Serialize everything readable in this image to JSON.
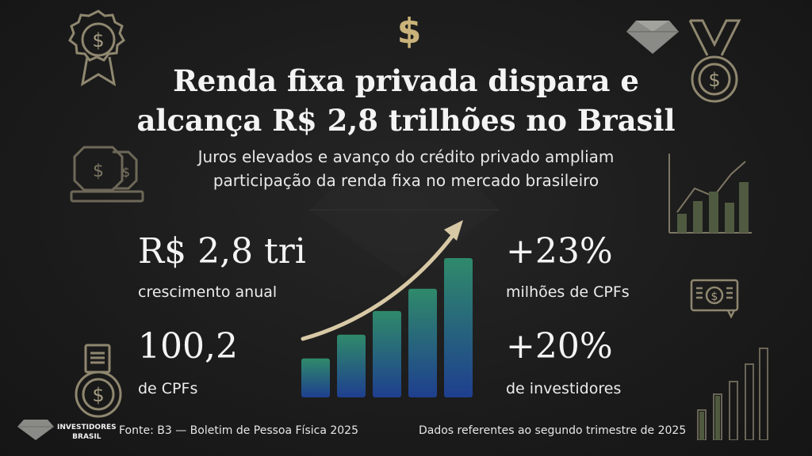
{
  "headline": {
    "line1": "Renda fixa privada dispara e",
    "line2": "alcança R$ 2,8 trilhões no Brasil"
  },
  "subheadline": {
    "line1": "Juros elevados e avanço do crédito privado ampliam",
    "line2": "participação da renda fixa no mercado brasileiro"
  },
  "stats": [
    {
      "value": "R$ 2,8 tri",
      "label": "crescimento anual"
    },
    {
      "value": "100,2",
      "label": "de CPFs"
    },
    {
      "value": "+23%",
      "label": "milhões de CPFs"
    },
    {
      "value": "+20%",
      "label": "de investidores"
    }
  ],
  "footer": {
    "logo_line1": "INVESTIDORES",
    "logo_line2": "BRASIL",
    "source": "Fonte: B3 — Boletim de Pessoa Física 2025",
    "note": "Dados referentes ao segundo trimestre de 2025"
  },
  "illustration": {
    "bar_levels": [
      0.28,
      0.45,
      0.62,
      0.78,
      1.0
    ],
    "colors": {
      "bar_top": "#2f8a6a",
      "bar_bottom": "#1f3f8f",
      "arrow": "#d8c9a6",
      "icon_stroke": "#9a9279"
    }
  },
  "icons": [
    "dollar-badge-icon",
    "dollar-sign-icon",
    "diamond-icon",
    "medal-icon",
    "coins-icon",
    "mini-bar-chart-icon",
    "banknote-icon",
    "medal-ribbon-icon",
    "tall-bars-icon",
    "diamond-logo-icon"
  ]
}
